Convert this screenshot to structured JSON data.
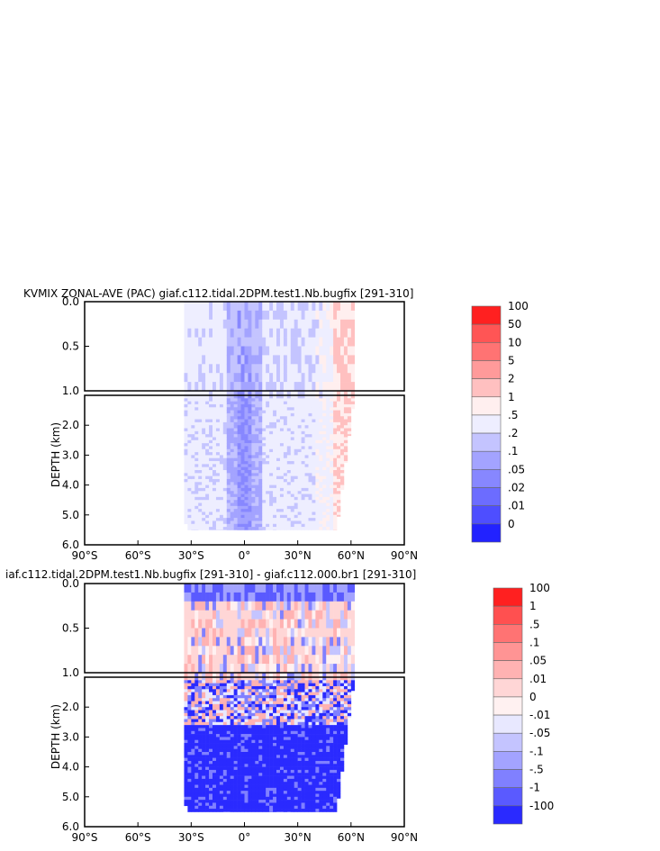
{
  "chart_data": [
    {
      "type": "heatmap",
      "title": "KVMIX ZONAL-AVE (PAC) giaf.c112.tidal.2DPM.test1.Nb.bugfix [291-310]",
      "ylabel": "DEPTH (km)",
      "x_ticks": [
        "90°S",
        "60°S",
        "30°S",
        "0°",
        "30°N",
        "60°N",
        "90°N"
      ],
      "xlim": [
        -90,
        90
      ],
      "upper_panel_y_ticks": [
        "0.0",
        "0.5",
        "1.0"
      ],
      "upper_panel_ylim": [
        0,
        1.0
      ],
      "lower_panel_y_ticks": [
        "2.0",
        "3.0",
        "4.0",
        "5.0",
        "6.0"
      ],
      "lower_panel_ylim": [
        1.0,
        6.0
      ],
      "data_extent": {
        "lat_min": -34,
        "lat_max": 62,
        "depth_max": 5.5
      },
      "colorbar": {
        "labels": [
          "100",
          "50",
          "10",
          "5",
          "2",
          "1",
          ".5",
          ".2",
          ".1",
          ".05",
          ".02",
          ".01",
          "0"
        ],
        "colors": [
          "#ff2020",
          "#ff5555",
          "#ff7373",
          "#ff9a9a",
          "#ffc0c0",
          "#ffefef",
          "#eeeeff",
          "#c4c4ff",
          "#a3a3ff",
          "#8787ff",
          "#6c6cff",
          "#4e4eff",
          "#2222ff"
        ]
      },
      "pattern": "mostly 0.2-0.5 (light blue); bluer 0.05-0.1 near equator; reddish 2-10 near 55-60N"
    },
    {
      "type": "heatmap",
      "title": "iaf.c112.tidal.2DPM.test1.Nb.bugfix [291-310] - giaf.c112.000.br1 [291-310]",
      "ylabel": "DEPTH (km)",
      "x_ticks": [
        "90°S",
        "60°S",
        "30°S",
        "0°",
        "30°N",
        "60°N",
        "90°N"
      ],
      "xlim": [
        -90,
        90
      ],
      "upper_panel_y_ticks": [
        "0.0",
        "0.5",
        "1.0"
      ],
      "upper_panel_ylim": [
        0,
        1.0
      ],
      "lower_panel_y_ticks": [
        "2.0",
        "3.0",
        "4.0",
        "5.0",
        "6.0"
      ],
      "lower_panel_ylim": [
        1.0,
        6.0
      ],
      "data_extent": {
        "lat_min": -34,
        "lat_max": 62,
        "depth_max": 5.5
      },
      "colorbar": {
        "labels": [
          "100",
          "1",
          ".5",
          ".1",
          ".05",
          ".01",
          "0",
          "-.01",
          "-.05",
          "-.1",
          "-.5",
          "-1",
          "-100"
        ],
        "colors": [
          "#ff2020",
          "#ff5050",
          "#ff7373",
          "#ff9494",
          "#ffb2b2",
          "#ffd6d6",
          "#fff1f1",
          "#e8e8ff",
          "#c4c4ff",
          "#a3a3ff",
          "#8080ff",
          "#5a5aff",
          "#2a2aff"
        ]
      },
      "pattern": "upper 1 km mostly positive (.05-.5, red stripes); deep ocean strongly negative (-1 to -100, blue)"
    }
  ]
}
